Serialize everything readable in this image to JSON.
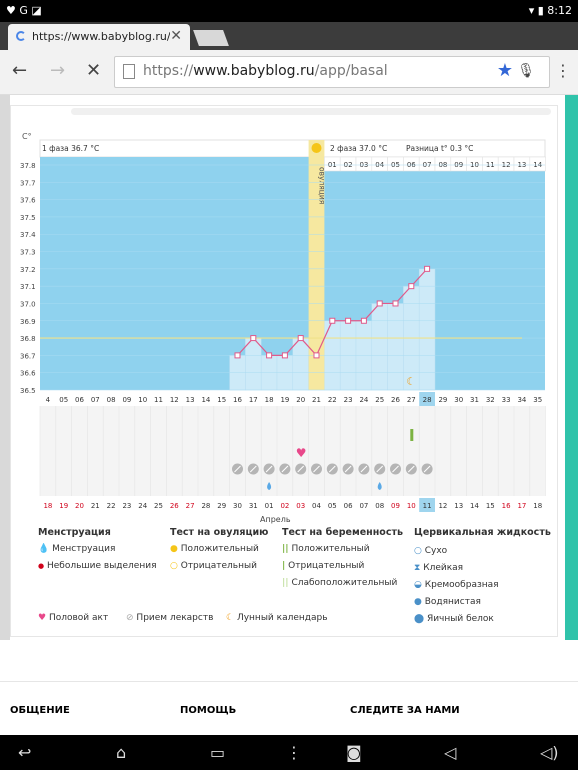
{
  "statusbar": {
    "left_icons": "♥ G ◪",
    "time": "8:12"
  },
  "tab": {
    "title": "https://www.babyblog.ru/app/"
  },
  "omnibox": {
    "url_prefix": "https://",
    "url_domain": "www.babyblog.ru",
    "url_path": "/app/basal"
  },
  "chart_data": {
    "type": "line",
    "title": "",
    "ylabel": "C°",
    "ylim": [
      36.5,
      37.8
    ],
    "y_ticks": [
      "37.8",
      "37.7",
      "37.6",
      "37.5",
      "37.4",
      "37.3",
      "37.2",
      "37.1",
      "37.0",
      "36.9",
      "36.8",
      "36.7",
      "36.6",
      "36.5"
    ],
    "phase1_label": "1 фаза 36.7 °C",
    "phase2_label": "2 фаза 37.0 °C",
    "diff_label": "Разница t° 0.3 °C",
    "ovulation_label": "овуляция",
    "ovulation_day": 21,
    "coverline": 36.8,
    "cycle_days": [
      "4",
      "05",
      "06",
      "07",
      "08",
      "09",
      "10",
      "11",
      "12",
      "13",
      "14",
      "15",
      "16",
      "17",
      "18",
      "19",
      "20",
      "21",
      "22",
      "23",
      "24",
      "25",
      "26",
      "27",
      "28",
      "29",
      "30",
      "31",
      "32",
      "33",
      "34",
      "35"
    ],
    "dpo_labels": [
      "01",
      "02",
      "03",
      "04",
      "05",
      "06",
      "07",
      "08",
      "09",
      "10",
      "11",
      "12",
      "13",
      "14"
    ],
    "dates": [
      "18",
      "19",
      "20",
      "21",
      "22",
      "23",
      "24",
      "25",
      "26",
      "27",
      "28",
      "29",
      "30",
      "31",
      "01",
      "02",
      "03",
      "04",
      "05",
      "06",
      "07",
      "08",
      "09",
      "10",
      "11",
      "12",
      "13",
      "14",
      "15",
      "16",
      "17",
      "18"
    ],
    "date_colors": [
      "#d0021b",
      "#d0021b",
      "#d0021b",
      "#333",
      "#333",
      "#333",
      "#333",
      "#333",
      "#d0021b",
      "#d0021b",
      "#333",
      "#333",
      "#333",
      "#333",
      "#333",
      "#d0021b",
      "#d0021b",
      "#333",
      "#333",
      "#333",
      "#333",
      "#333",
      "#d0021b",
      "#d0021b",
      "#333",
      "#333",
      "#333",
      "#333",
      "#333",
      "#d0021b",
      "#d0021b",
      "#333"
    ],
    "month_label": "Апрель",
    "series": [
      {
        "x": [
          16,
          17,
          18,
          19,
          20,
          21,
          22,
          23,
          24,
          25,
          26,
          27,
          28
        ],
        "y": [
          36.7,
          36.8,
          36.7,
          36.7,
          36.8,
          36.7,
          36.9,
          36.9,
          36.9,
          37.0,
          37.0,
          37.1,
          37.2
        ]
      }
    ],
    "today_day": 28,
    "today_date": "11",
    "heart_day": 20,
    "pill_days": [
      16,
      17,
      18,
      19,
      20,
      21,
      22,
      23,
      24,
      25,
      26,
      27,
      28
    ],
    "drop_days": [
      18,
      25
    ],
    "moon_day": 27,
    "test_day": 27,
    "colors": {
      "blue": "#8fd2ee",
      "bar": "#cdeaf8",
      "line": "#e05a8a",
      "ovulation": "#f6e8a0",
      "today": "#9fd5ee"
    }
  },
  "legend": {
    "menstruation": {
      "title": "Менструация",
      "items": [
        "Менструация",
        "Небольшие выделения"
      ]
    },
    "ovulation_test": {
      "title": "Тест на овуляцию",
      "items": [
        "Положительный",
        "Отрицательный"
      ]
    },
    "pregnancy_test": {
      "title": "Тест на беременность",
      "items": [
        "Положительный",
        "Отрицательный",
        "Слабоположительный"
      ]
    },
    "cervical": {
      "title": "Цервикальная жидкость",
      "items": [
        "Сухо",
        "Клейкая",
        "Кремообразная",
        "Водянистая",
        "Яичный белок"
      ]
    },
    "extra": [
      "Половой акт",
      "Прием лекарств",
      "Лунный календарь"
    ]
  },
  "footer": {
    "col1": "ОБЩЕНИЕ",
    "col2": "ПОМОЩЬ",
    "col3": "СЛЕДИТЕ ЗА НАМИ"
  }
}
